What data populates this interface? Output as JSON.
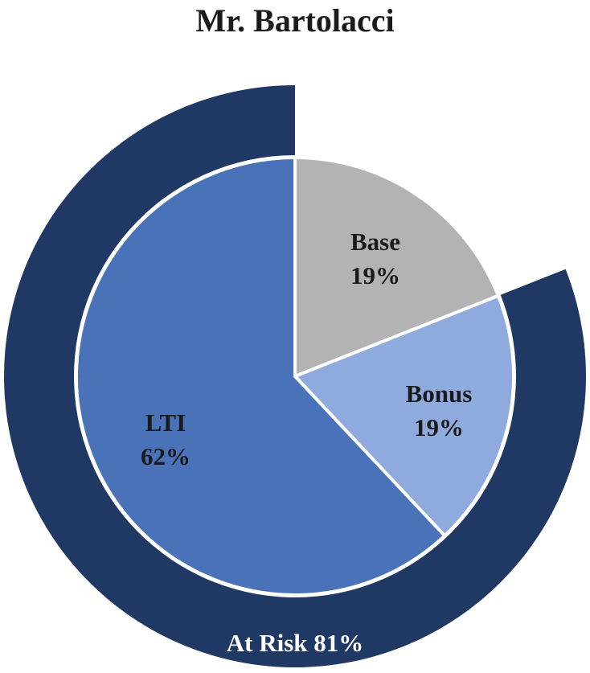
{
  "chart_data": {
    "type": "pie",
    "title": "Mr. Bartolacci",
    "slices": [
      {
        "label": "Base",
        "value": 19,
        "value_label": "19%",
        "color": "#b3b3b3",
        "text_color": "#1a1a1a"
      },
      {
        "label": "Bonus",
        "value": 19,
        "value_label": "19%",
        "color": "#8faadc",
        "text_color": "#1a1a1a"
      },
      {
        "label": "LTI",
        "value": 62,
        "value_label": "62%",
        "color": "#4a72b8",
        "text_color": "#1a1a1a"
      }
    ],
    "outer_ring": {
      "label": "At Risk 81%",
      "value": 81,
      "color": "#1f3864",
      "text_color": "#ffffff"
    }
  }
}
